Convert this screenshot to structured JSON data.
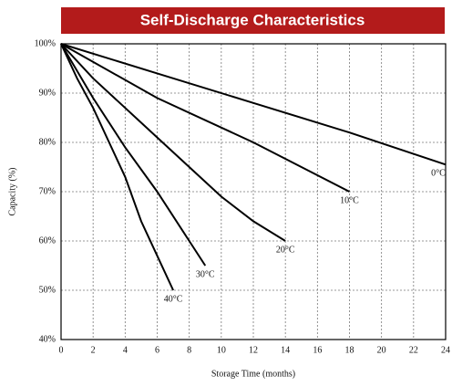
{
  "chart_data": {
    "type": "line",
    "title": "Self-Discharge Characteristics",
    "xlabel": "Storage Time (months)",
    "ylabel": "Capacity (%)",
    "xlim": [
      0,
      24
    ],
    "ylim": [
      40,
      100
    ],
    "xticks": [
      0,
      2,
      4,
      6,
      8,
      10,
      12,
      14,
      16,
      18,
      20,
      22,
      24
    ],
    "yticks": [
      {
        "value": 40,
        "label": "40%"
      },
      {
        "value": 50,
        "label": "50%"
      },
      {
        "value": 60,
        "label": "60%"
      },
      {
        "value": 70,
        "label": "70%"
      },
      {
        "value": 80,
        "label": "80%"
      },
      {
        "value": 90,
        "label": "90%"
      },
      {
        "value": 100,
        "label": "100%"
      }
    ],
    "grid": true,
    "series": [
      {
        "name": "0°C",
        "color": "#000000",
        "x": [
          0,
          6,
          12,
          18,
          24
        ],
        "values": [
          100,
          94,
          88,
          82,
          75.5
        ]
      },
      {
        "name": "10°C",
        "color": "#000000",
        "x": [
          0,
          6,
          12,
          18
        ],
        "values": [
          100,
          89,
          80,
          70
        ]
      },
      {
        "name": "20°C",
        "color": "#000000",
        "x": [
          0,
          2,
          4,
          6,
          8,
          10,
          12,
          14
        ],
        "values": [
          100,
          93,
          87,
          81,
          75,
          69,
          64,
          60
        ]
      },
      {
        "name": "30°C",
        "color": "#000000",
        "x": [
          0,
          2,
          4,
          6,
          8,
          9
        ],
        "values": [
          100,
          89,
          79,
          70,
          60,
          55
        ]
      },
      {
        "name": "40°C",
        "color": "#000000",
        "x": [
          0,
          1,
          2,
          3,
          4,
          5,
          6,
          7
        ],
        "values": [
          100,
          93,
          87,
          80,
          73,
          64,
          57,
          50
        ]
      }
    ]
  }
}
